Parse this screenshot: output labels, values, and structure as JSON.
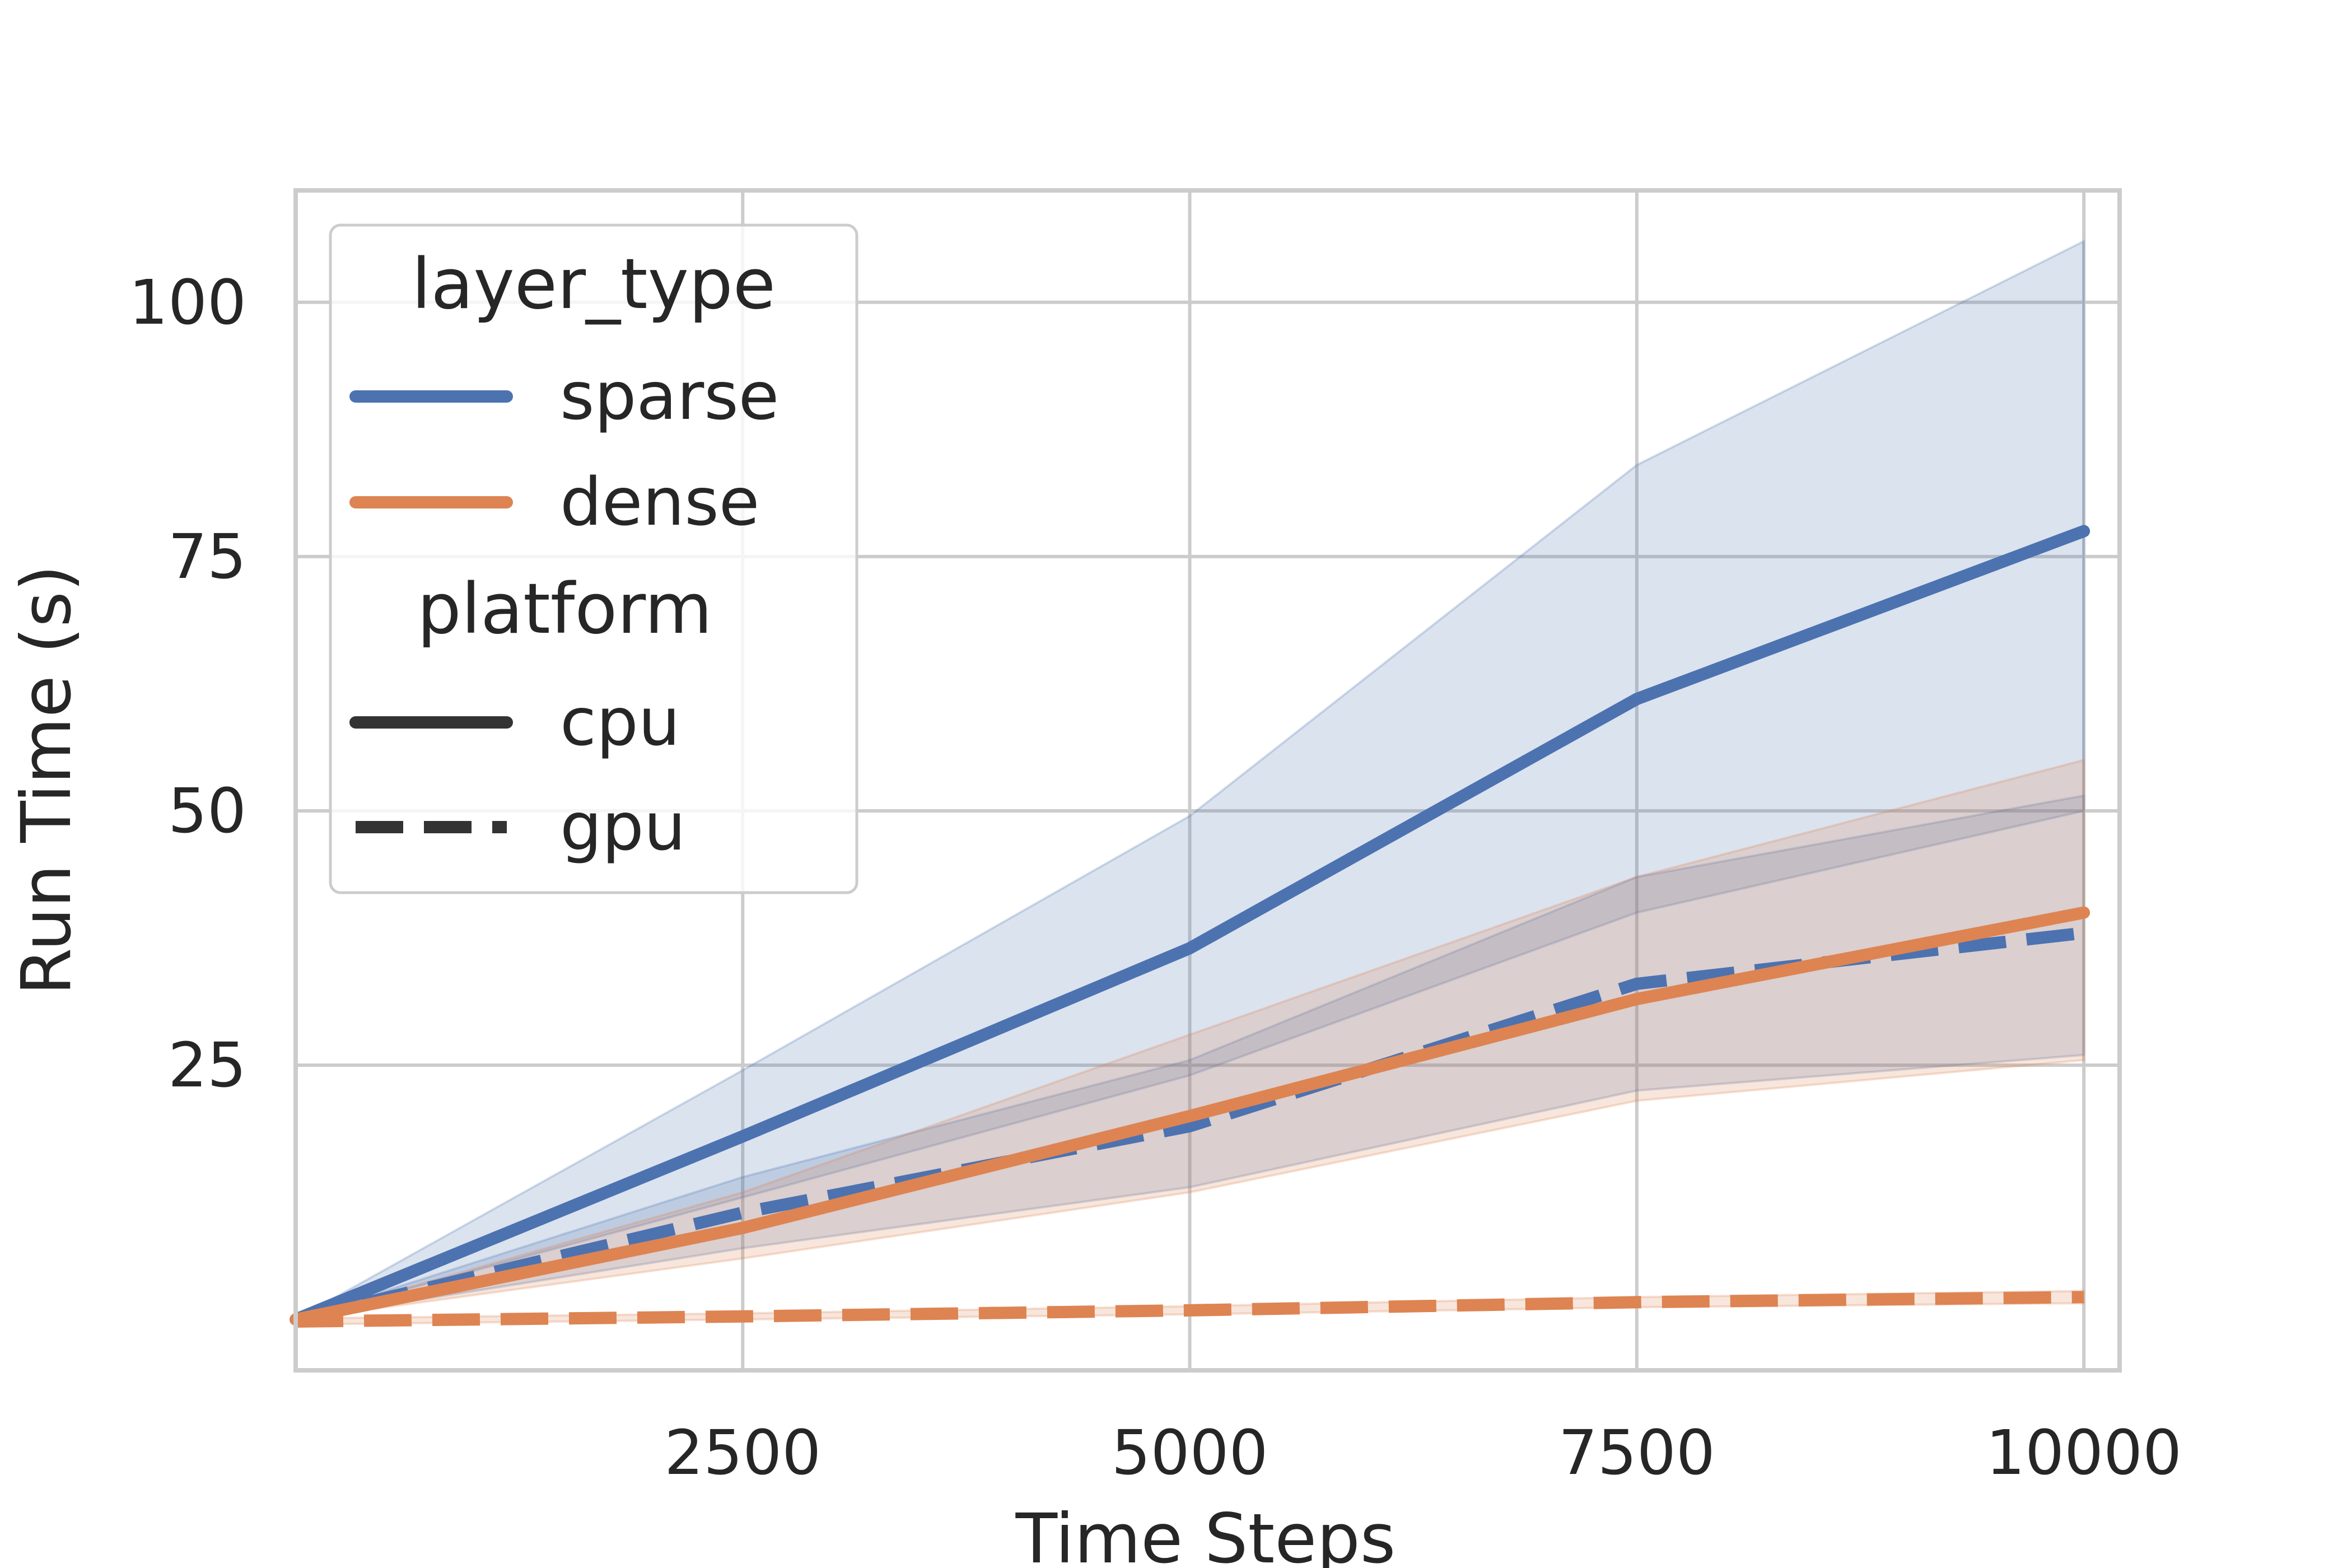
{
  "chart_data": {
    "type": "line",
    "title": "",
    "xlabel": "Time Steps",
    "ylabel": "Run Time (s)",
    "xlim": [
      0,
      10200
    ],
    "ylim": [
      -5,
      111
    ],
    "x_ticks": [
      2500,
      5000,
      7500,
      10000
    ],
    "x_tick_labels": [
      "2500",
      "5000",
      "7500",
      "10000"
    ],
    "y_ticks": [
      25,
      50,
      75,
      100
    ],
    "y_tick_labels": [
      "25",
      "50",
      "75",
      "100"
    ],
    "grid": true,
    "legend": {
      "placement": "top-left",
      "hue_title": "layer_type",
      "hue_entries": [
        {
          "label": "sparse",
          "color": "#4c72b0"
        },
        {
          "label": "dense",
          "color": "#dd8452"
        }
      ],
      "style_title": "platform",
      "style_entries": [
        {
          "label": "cpu",
          "dash": "solid"
        },
        {
          "label": "gpu",
          "dash": "dashed"
        }
      ]
    },
    "series": [
      {
        "layer_type": "sparse",
        "platform": "cpu",
        "color": "#4c72b0",
        "dash": "solid",
        "x": [
          0,
          2500,
          5000,
          7500,
          10000
        ],
        "y": [
          0,
          18,
          36.5,
          61,
          77.5
        ],
        "ci_low": [
          0,
          12,
          24,
          40,
          50
        ],
        "ci_high": [
          0,
          24.5,
          49.5,
          84,
          106
        ]
      },
      {
        "layer_type": "sparse",
        "platform": "gpu",
        "color": "#4c72b0",
        "dash": "dashed",
        "x": [
          0,
          2500,
          5000,
          7500,
          10000
        ],
        "y": [
          0,
          10.5,
          19,
          33,
          38
        ],
        "ci_low": [
          0,
          7,
          13,
          22.5,
          26
        ],
        "ci_high": [
          0,
          14,
          25.5,
          43.5,
          51.5
        ]
      },
      {
        "layer_type": "dense",
        "platform": "cpu",
        "color": "#dd8452",
        "dash": "solid",
        "x": [
          0,
          2500,
          5000,
          7500,
          10000
        ],
        "y": [
          0,
          9,
          20,
          31.5,
          40
        ],
        "ci_low": [
          0,
          6,
          12.5,
          21.5,
          25.5
        ],
        "ci_high": [
          0,
          12.5,
          28,
          43.5,
          55
        ]
      },
      {
        "layer_type": "dense",
        "platform": "gpu",
        "color": "#dd8452",
        "dash": "dashed",
        "x": [
          0,
          2500,
          5000,
          7500,
          10000
        ],
        "y": [
          -0.2,
          0.3,
          0.9,
          1.7,
          2.2
        ],
        "ci_low": [
          -0.5,
          0.0,
          0.5,
          1.2,
          1.6
        ],
        "ci_high": [
          0.1,
          0.6,
          1.3,
          2.2,
          2.8
        ]
      }
    ]
  }
}
